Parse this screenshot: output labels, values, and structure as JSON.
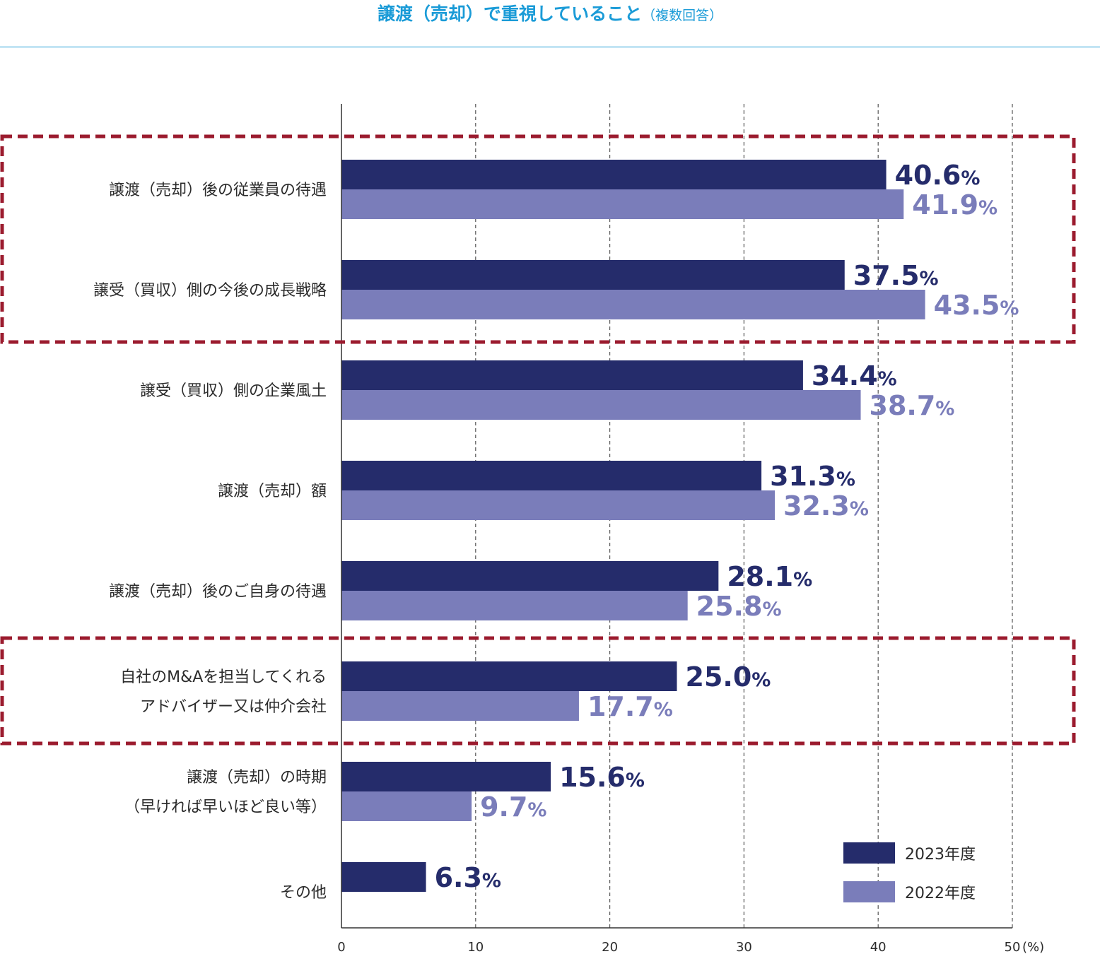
{
  "title": {
    "main": "譲渡（売却）で重視していること",
    "sub": "（複数回答）"
  },
  "colors": {
    "title": "#1a9bd7",
    "s2023": "#252c6b",
    "s2022": "#7a7dba",
    "highlight": "#9b1b2e",
    "grid": "#555555"
  },
  "chart_data": {
    "type": "bar",
    "orientation": "horizontal",
    "title": "譲渡（売却）で重視していること（複数回答）",
    "categories": [
      [
        "譲渡（売却）後の従業員の待遇"
      ],
      [
        "譲受（買収）側の今後の成長戦略"
      ],
      [
        "譲受（買収）側の企業風土"
      ],
      [
        "譲渡（売却）額"
      ],
      [
        "譲渡（売却）後のご自身の待遇"
      ],
      [
        "自社のM&Aを担当してくれる",
        "アドバイザー又は仲介会社"
      ],
      [
        "譲渡（売却）の時期",
        "（早ければ早いほど良い等）"
      ],
      [
        "その他"
      ]
    ],
    "series": [
      {
        "name": "2023年度",
        "values": [
          40.6,
          37.5,
          34.4,
          31.3,
          28.1,
          25.0,
          15.6,
          6.3
        ],
        "labels": [
          "40.6",
          "37.5",
          "34.4",
          "31.3",
          "28.1",
          "25.0",
          "15.6",
          "6.3"
        ]
      },
      {
        "name": "2022年度",
        "values": [
          41.9,
          43.5,
          38.7,
          32.3,
          25.8,
          17.7,
          9.7,
          null
        ],
        "labels": [
          "41.9",
          "43.5",
          "38.7",
          "32.3",
          "25.8",
          "17.7",
          "9.7",
          null
        ]
      }
    ],
    "value_suffix": "%",
    "xlim": [
      0,
      50
    ],
    "xticks": [
      "0",
      "10",
      "20",
      "30",
      "40",
      "50"
    ],
    "xunit": "(%)",
    "grid": "dashed vertical",
    "legend": "bottom-right",
    "highlight_groups": [
      [
        0,
        1
      ],
      [
        5
      ]
    ]
  }
}
